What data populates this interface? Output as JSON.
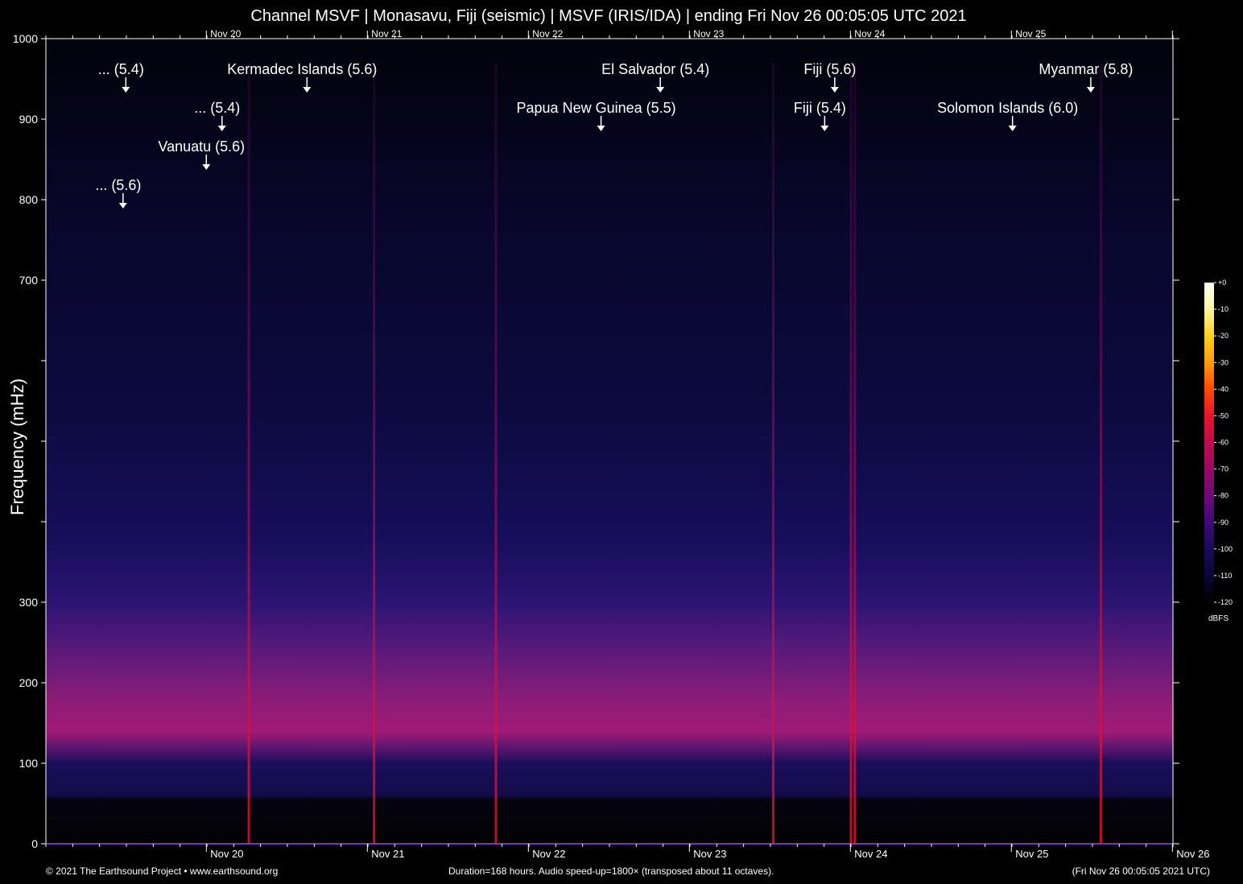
{
  "title": "Channel MSVF | Monasavu, Fiji (seismic) | MSVF (IRIS/IDA) | ending Fri Nov 26 00:05:05 UTC 2021",
  "footer": {
    "copyright": "© 2021 The Earthsound Project • www.earthsound.org",
    "duration": "Duration=168 hours. Audio speed-up=1800× (transposed about 11 octaves).",
    "end_time": "(Fri Nov 26 00:05:05 2021 UTC)"
  },
  "chart_data": {
    "type": "heatmap",
    "title": "Channel MSVF | Monasavu, Fiji (seismic) | MSVF (IRIS/IDA) | ending Fri Nov 26 00:05:05 UTC 2021",
    "ylabel": "Frequency (mHz)",
    "xlabel": "",
    "ylim": [
      0,
      1000
    ],
    "xlim": [
      "Nov 19 00:05",
      "Nov 26 00:05"
    ],
    "y_ticks": [
      0,
      100,
      200,
      300,
      400,
      500,
      600,
      700,
      800,
      900,
      1000
    ],
    "y_tick_labels": [
      "0",
      "100",
      "200",
      "300",
      "",
      "",
      "",
      "700",
      "800",
      "900",
      "1000"
    ],
    "x_ticks": [
      "Nov 20",
      "Nov 21",
      "Nov 22",
      "Nov 23",
      "Nov 24",
      "Nov 25",
      "Nov 26"
    ],
    "x_tick_labels_top": [
      "Nov 20",
      "Nov 21",
      "Nov 22",
      "Nov 23",
      "Nov 24",
      "Nov 25"
    ],
    "x_tick_labels_bottom": [
      "Nov 20",
      "Nov 21",
      "Nov 22",
      "Nov 23",
      "Nov 24",
      "Nov 25",
      "Nov 26"
    ],
    "colorbar": {
      "unit": "dBFS",
      "range": [
        -120,
        0
      ],
      "ticks": [
        "+0",
        "-10",
        "-20",
        "-30",
        "-40",
        "-50",
        "-60",
        "-70",
        "-80",
        "-90",
        "-100",
        "-110",
        "-120"
      ],
      "colors": [
        "#fffff2",
        "#fff6a0",
        "#ffd21e",
        "#ff9a0a",
        "#ff4a08",
        "#e8142a",
        "#c00c4e",
        "#960a66",
        "#6c0a78",
        "#3e0a78",
        "#1a0a5c",
        "#0a0636",
        "#000000"
      ]
    },
    "events": [
      {
        "label": "... (5.4)",
        "time": "Nov 19 12:00"
      },
      {
        "label": "... (5.6)",
        "time": "Nov 19 11:35"
      },
      {
        "label": "Vanuatu (5.6)",
        "time": "Nov 20 00:00"
      },
      {
        "label": "... (5.4)",
        "time": "Nov 20 02:20"
      },
      {
        "label": "Kermadec Islands (5.6)",
        "time": "Nov 20 15:00"
      },
      {
        "label": "Papua New Guinea (5.5)",
        "time": "Nov 22 10:50"
      },
      {
        "label": "El Salvador (5.4)",
        "time": "Nov 22 19:40"
      },
      {
        "label": "Fiji (5.4)",
        "time": "Nov 23 20:10"
      },
      {
        "label": "Fiji (5.6)",
        "time": "Nov 23 21:40"
      },
      {
        "label": "Solomon Islands (6.0)",
        "time": "Nov 25 00:10"
      },
      {
        "label": "Myanmar (5.8)",
        "time": "Nov 25 11:50"
      }
    ],
    "background_band_mhz": [
      120,
      300
    ],
    "strong_lines": [
      "Nov 20 06:20",
      "Nov 21 01:00",
      "Nov 21 19:10",
      "Nov 23 12:30",
      "Nov 24 00:05",
      "Nov 24 00:40",
      "Nov 25 13:20"
    ]
  }
}
